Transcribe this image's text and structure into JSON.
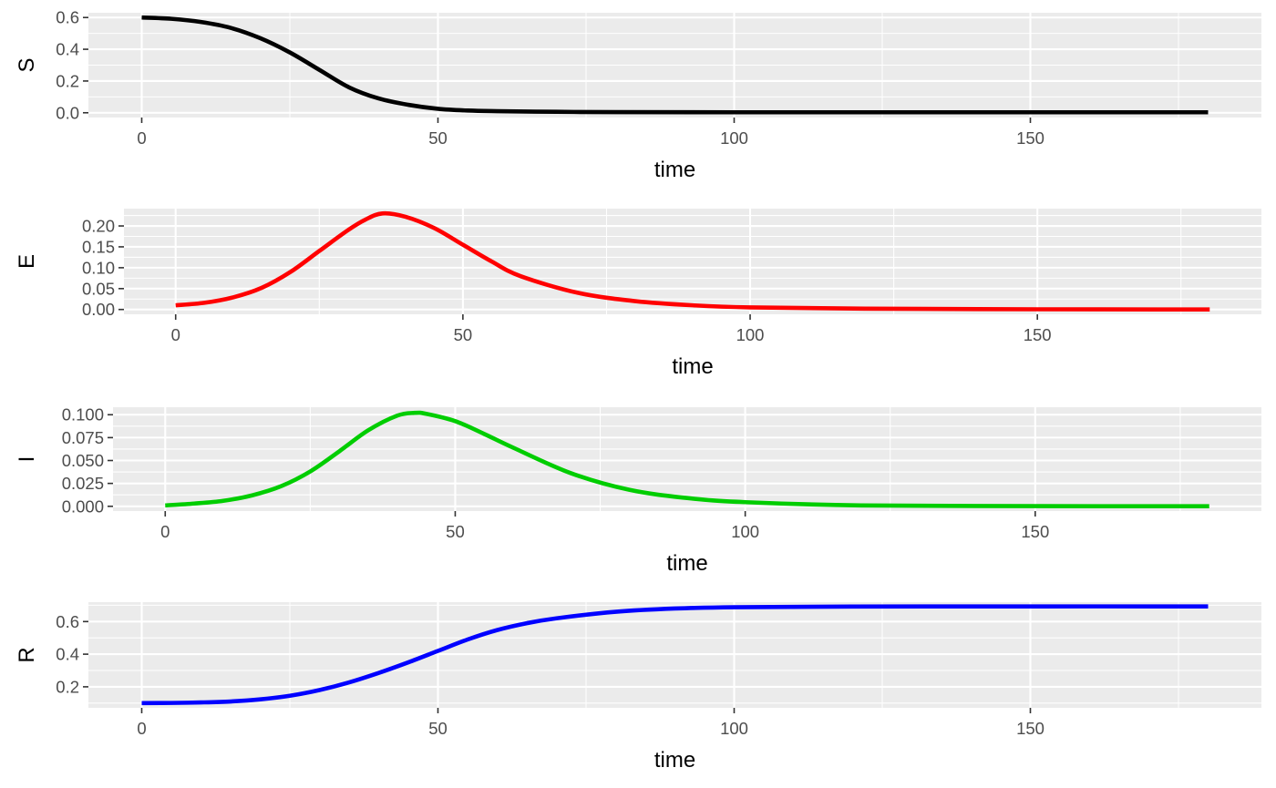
{
  "chart_data": [
    {
      "type": "line",
      "xlabel": "time",
      "ylabel": "S",
      "xlim": [
        -9,
        189
      ],
      "ylim": [
        -0.03,
        0.63
      ],
      "x_ticks": [
        0,
        50,
        100,
        150
      ],
      "x_tick_labels": [
        "0",
        "50",
        "100",
        "150"
      ],
      "y_ticks": [
        0.0,
        0.2,
        0.4,
        0.6
      ],
      "y_tick_labels": [
        "0.0",
        "0.2",
        "0.4",
        "0.6"
      ],
      "grid": true,
      "series": [
        {
          "color": "#000000",
          "x": [
            0,
            5,
            10,
            15,
            20,
            25,
            30,
            35,
            40,
            45,
            50,
            55,
            60,
            70,
            80,
            100,
            130,
            180
          ],
          "y": [
            0.6,
            0.592,
            0.572,
            0.535,
            0.47,
            0.38,
            0.27,
            0.16,
            0.09,
            0.05,
            0.025,
            0.014,
            0.01,
            0.006,
            0.004,
            0.003,
            0.003,
            0.003
          ]
        }
      ]
    },
    {
      "type": "line",
      "xlabel": "time",
      "ylabel": "E",
      "xlim": [
        -9,
        189
      ],
      "ylim": [
        -0.0115,
        0.2415
      ],
      "x_ticks": [
        0,
        50,
        100,
        150
      ],
      "x_tick_labels": [
        "0",
        "50",
        "100",
        "150"
      ],
      "y_ticks": [
        0.0,
        0.05,
        0.1,
        0.15,
        0.2
      ],
      "y_tick_labels": [
        "0.00",
        "0.05",
        "0.10",
        "0.15",
        "0.20"
      ],
      "grid": true,
      "series": [
        {
          "color": "#ff0000",
          "x": [
            0,
            5,
            10,
            15,
            20,
            25,
            30,
            33,
            36,
            40,
            45,
            50,
            55,
            60,
            70,
            80,
            90,
            100,
            120,
            150,
            180
          ],
          "y": [
            0.01,
            0.016,
            0.029,
            0.052,
            0.09,
            0.14,
            0.19,
            0.215,
            0.23,
            0.222,
            0.195,
            0.155,
            0.115,
            0.08,
            0.04,
            0.02,
            0.01,
            0.005,
            0.002,
            0.0005,
            0.0001
          ]
        }
      ]
    },
    {
      "type": "line",
      "xlabel": "time",
      "ylabel": "I",
      "xlim": [
        -9,
        189
      ],
      "ylim": [
        -0.0052,
        0.1082
      ],
      "x_ticks": [
        0,
        50,
        100,
        150
      ],
      "x_tick_labels": [
        "0",
        "50",
        "100",
        "150"
      ],
      "y_ticks": [
        0.0,
        0.025,
        0.05,
        0.075,
        0.1
      ],
      "y_tick_labels": [
        "0.000",
        "0.025",
        "0.050",
        "0.075",
        "0.100"
      ],
      "grid": true,
      "series": [
        {
          "color": "#00cd00",
          "x": [
            0,
            5,
            10,
            15,
            20,
            25,
            30,
            35,
            40,
            43,
            45,
            50,
            55,
            60,
            70,
            80,
            90,
            100,
            120,
            150,
            180
          ],
          "y": [
            0.001,
            0.003,
            0.006,
            0.012,
            0.022,
            0.038,
            0.06,
            0.083,
            0.099,
            0.102,
            0.101,
            0.093,
            0.079,
            0.064,
            0.036,
            0.018,
            0.009,
            0.0045,
            0.001,
            0.0002,
            0.0001
          ]
        }
      ]
    },
    {
      "type": "line",
      "xlabel": "time",
      "ylabel": "R",
      "xlim": [
        -9,
        189
      ],
      "ylim": [
        0.071,
        0.719
      ],
      "x_ticks": [
        0,
        50,
        100,
        150
      ],
      "x_tick_labels": [
        "0",
        "50",
        "100",
        "150"
      ],
      "y_ticks": [
        0.2,
        0.4,
        0.6
      ],
      "y_tick_labels": [
        "0.2",
        "0.4",
        "0.6"
      ],
      "grid": true,
      "series": [
        {
          "color": "#0000ff",
          "x": [
            0,
            5,
            10,
            15,
            20,
            25,
            30,
            35,
            40,
            45,
            50,
            55,
            60,
            65,
            70,
            80,
            90,
            100,
            120,
            150,
            180
          ],
          "y": [
            0.1,
            0.101,
            0.104,
            0.11,
            0.123,
            0.145,
            0.18,
            0.227,
            0.285,
            0.35,
            0.42,
            0.49,
            0.548,
            0.59,
            0.62,
            0.66,
            0.68,
            0.688,
            0.692,
            0.693,
            0.693
          ]
        }
      ]
    }
  ]
}
